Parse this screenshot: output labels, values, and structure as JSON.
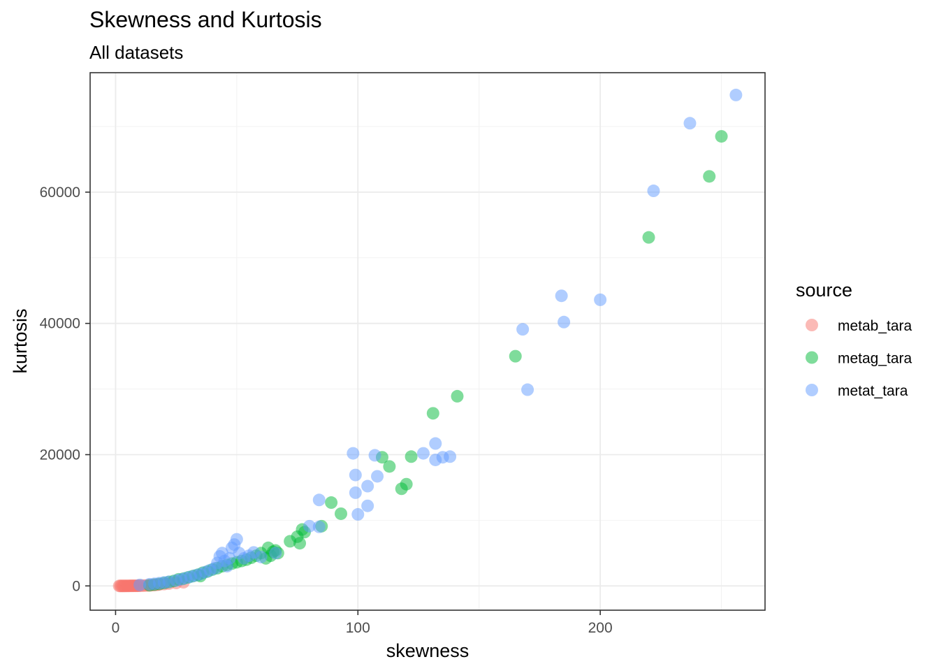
{
  "chart_data": {
    "type": "scatter",
    "title": "Skewness and Kurtosis",
    "subtitle": "All datasets",
    "xlabel": "skewness",
    "ylabel": "kurtosis",
    "xlim": [
      -10.5,
      268
    ],
    "ylim": [
      -3700,
      78200
    ],
    "x_ticks": [
      0,
      100,
      200
    ],
    "y_ticks": [
      0,
      20000,
      40000,
      60000
    ],
    "x_tick_labels": [
      "0",
      "100",
      "200"
    ],
    "y_tick_labels": [
      "0",
      "20000",
      "40000",
      "60000"
    ],
    "grid": true,
    "legend": {
      "title": "source",
      "position": "right"
    },
    "series": [
      {
        "name": "metab_tara",
        "color": "#F8766D",
        "points": [
          [
            1.5,
            0
          ],
          [
            2,
            0
          ],
          [
            2.5,
            0
          ],
          [
            3,
            0
          ],
          [
            3.5,
            0
          ],
          [
            4,
            0
          ],
          [
            4.5,
            5
          ],
          [
            5,
            5
          ],
          [
            5.5,
            5
          ],
          [
            6,
            10
          ],
          [
            6.5,
            10
          ],
          [
            7,
            10
          ],
          [
            7.5,
            15
          ],
          [
            8,
            15
          ],
          [
            8.5,
            20
          ],
          [
            9,
            20
          ],
          [
            9.5,
            25
          ],
          [
            10,
            30
          ],
          [
            11,
            40
          ],
          [
            12,
            50
          ],
          [
            13,
            70
          ],
          [
            14,
            90
          ],
          [
            15,
            110
          ],
          [
            16,
            140
          ],
          [
            17,
            170
          ],
          [
            18,
            210
          ],
          [
            20,
            280
          ],
          [
            22,
            350
          ],
          [
            25,
            450
          ],
          [
            28,
            560
          ]
        ]
      },
      {
        "name": "metag_tara",
        "color": "#00BA38",
        "points": [
          [
            14,
            100
          ],
          [
            16,
            200
          ],
          [
            18,
            300
          ],
          [
            20,
            450
          ],
          [
            22,
            600
          ],
          [
            24,
            750
          ],
          [
            26,
            1000
          ],
          [
            28,
            1100
          ],
          [
            30,
            1300
          ],
          [
            32,
            1500
          ],
          [
            34,
            1700
          ],
          [
            36,
            2000
          ],
          [
            38,
            2200
          ],
          [
            40,
            2500
          ],
          [
            42,
            2700
          ],
          [
            44,
            3000
          ],
          [
            46,
            3200
          ],
          [
            48,
            3400
          ],
          [
            50,
            3600
          ],
          [
            52,
            3800
          ],
          [
            54,
            4000
          ],
          [
            56,
            4300
          ],
          [
            58,
            4600
          ],
          [
            60,
            5000
          ],
          [
            62,
            4200
          ],
          [
            63,
            5800
          ],
          [
            64,
            4600
          ],
          [
            65,
            5200
          ],
          [
            66,
            5400
          ],
          [
            67,
            5000
          ],
          [
            72,
            6800
          ],
          [
            75,
            7500
          ],
          [
            76,
            6500
          ],
          [
            77,
            8600
          ],
          [
            78,
            8200
          ],
          [
            85,
            9100
          ],
          [
            89,
            12700
          ],
          [
            93,
            11000
          ],
          [
            110,
            19600
          ],
          [
            113,
            18200
          ],
          [
            118,
            14800
          ],
          [
            120,
            15500
          ],
          [
            122,
            19700
          ],
          [
            131,
            26300
          ],
          [
            141,
            28900
          ],
          [
            165,
            35000
          ],
          [
            220,
            53100
          ],
          [
            245,
            62400
          ],
          [
            250,
            68500
          ],
          [
            35,
            1500
          ]
        ]
      },
      {
        "name": "metat_tara",
        "color": "#619CFF",
        "points": [
          [
            10,
            150
          ],
          [
            14,
            250
          ],
          [
            16,
            320
          ],
          [
            18,
            420
          ],
          [
            20,
            520
          ],
          [
            22,
            620
          ],
          [
            25,
            820
          ],
          [
            27,
            1000
          ],
          [
            29,
            1200
          ],
          [
            31,
            1400
          ],
          [
            33,
            1600
          ],
          [
            35,
            1800
          ],
          [
            37,
            2100
          ],
          [
            39,
            2400
          ],
          [
            41,
            2700
          ],
          [
            42,
            3500
          ],
          [
            43,
            4500
          ],
          [
            44,
            5000
          ],
          [
            45,
            3800
          ],
          [
            46,
            3000
          ],
          [
            47,
            4200
          ],
          [
            48,
            5800
          ],
          [
            49,
            6300
          ],
          [
            50,
            7100
          ],
          [
            51,
            5000
          ],
          [
            53,
            4200
          ],
          [
            55,
            4600
          ],
          [
            57,
            5100
          ],
          [
            60,
            4400
          ],
          [
            66,
            5000
          ],
          [
            80,
            9100
          ],
          [
            84,
            13100
          ],
          [
            84,
            9000
          ],
          [
            98,
            20200
          ],
          [
            99,
            16900
          ],
          [
            99,
            14200
          ],
          [
            100,
            10900
          ],
          [
            104,
            12200
          ],
          [
            104,
            15200
          ],
          [
            107,
            19900
          ],
          [
            108,
            16700
          ],
          [
            127,
            20200
          ],
          [
            132,
            21700
          ],
          [
            132,
            19200
          ],
          [
            135,
            19600
          ],
          [
            138,
            19700
          ],
          [
            168,
            39100
          ],
          [
            170,
            29900
          ],
          [
            184,
            44200
          ],
          [
            185,
            40200
          ],
          [
            200,
            43600
          ],
          [
            222,
            60200
          ],
          [
            237,
            70500
          ],
          [
            256,
            74800
          ]
        ]
      }
    ]
  }
}
